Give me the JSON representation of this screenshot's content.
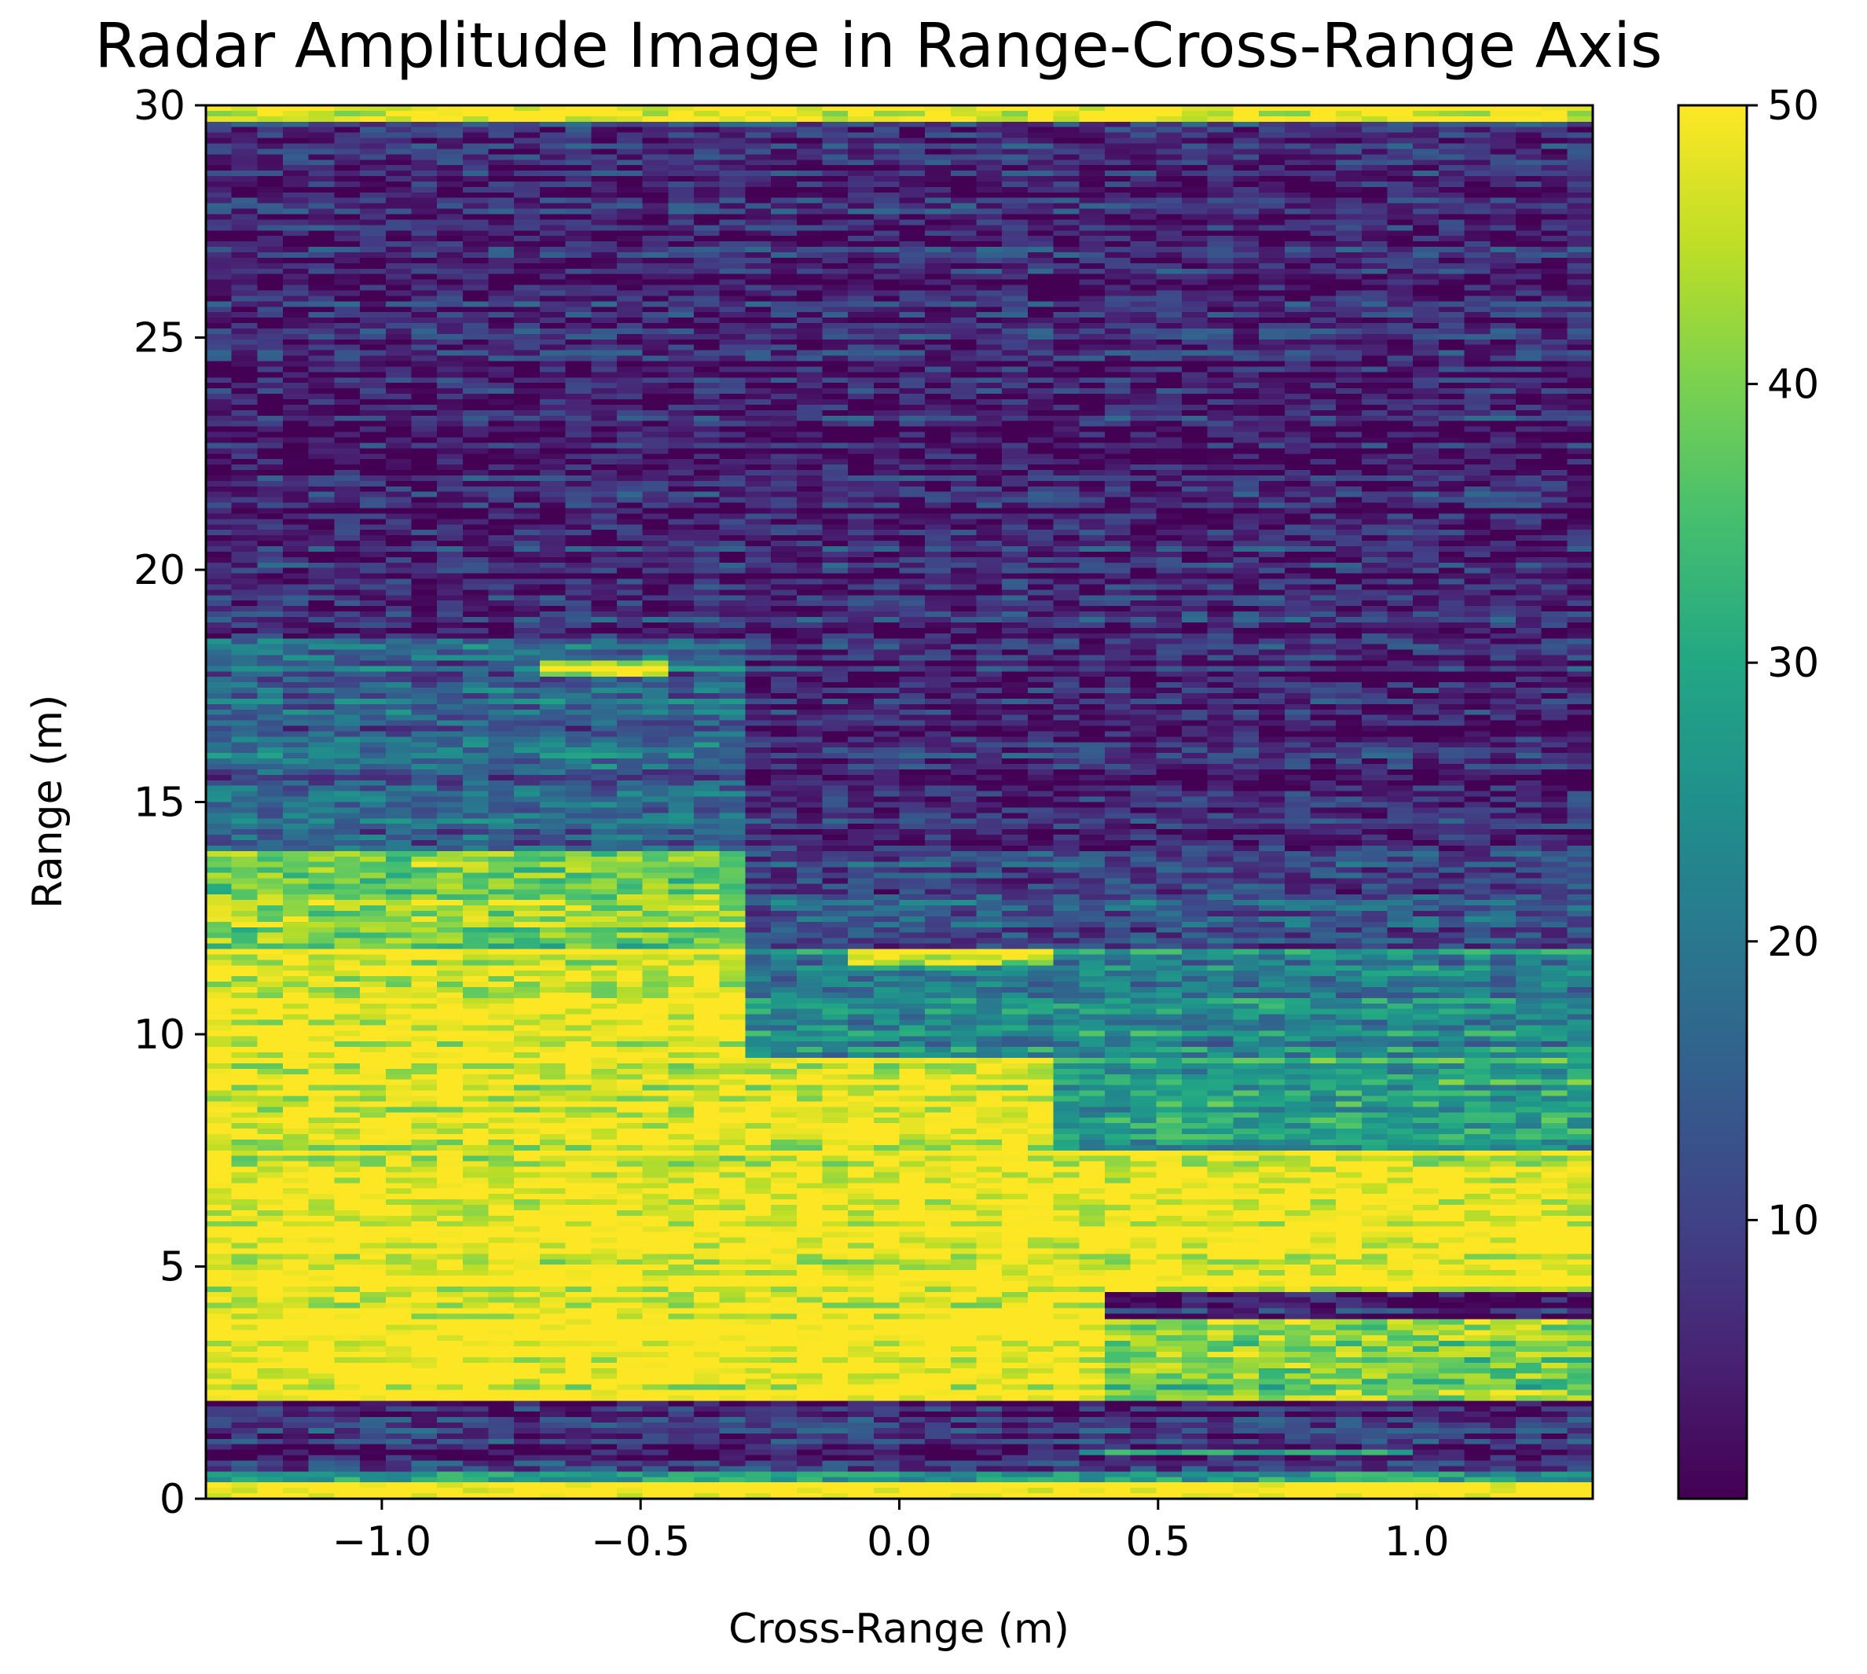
{
  "chart_data": {
    "type": "heatmap",
    "title": "Radar Amplitude Image in Range-Cross-Range Axis",
    "xlabel": "Cross-Range (m)",
    "ylabel": "Range (m)",
    "xlim": [
      -1.34,
      1.34
    ],
    "ylim": [
      0,
      30
    ],
    "xticks": [
      -1.0,
      -0.5,
      0.0,
      0.5,
      1.0
    ],
    "xtick_labels": [
      "−1.0",
      "−0.5",
      "0.0",
      "0.5",
      "1.0"
    ],
    "yticks": [
      0,
      5,
      10,
      15,
      20,
      25,
      30
    ],
    "ytick_labels": [
      "0",
      "5",
      "10",
      "15",
      "20",
      "25",
      "30"
    ],
    "colormap": "viridis",
    "color_range": [
      0,
      50
    ],
    "colorbar_ticks": [
      10,
      20,
      30,
      40,
      50
    ],
    "colorbar_tick_labels": [
      "10",
      "20",
      "30",
      "40",
      "50"
    ],
    "grid": false,
    "cross_range_bins": 54,
    "range_bins": 256,
    "cross_range": [
      -1.34,
      -1.29,
      -1.24,
      -1.19,
      -1.14,
      -1.09,
      -1.04,
      -0.99,
      -0.94,
      -0.89,
      -0.84,
      -0.79,
      -0.74,
      -0.69,
      -0.64,
      -0.59,
      -0.54,
      -0.49,
      -0.44,
      -0.39,
      -0.34,
      -0.29,
      -0.24,
      -0.19,
      -0.14,
      -0.09,
      -0.04,
      0.01,
      0.06,
      0.11,
      0.16,
      0.21,
      0.26,
      0.31,
      0.36,
      0.41,
      0.46,
      0.51,
      0.56,
      0.61,
      0.66,
      0.71,
      0.76,
      0.81,
      0.86,
      0.91,
      0.96,
      1.01,
      1.06,
      1.11,
      1.16,
      1.21,
      1.26,
      1.31
    ],
    "range_bands": [
      {
        "range": [
          0.0,
          0.4
        ],
        "cross_range": [
          -1.34,
          1.34
        ],
        "amplitude": 50
      },
      {
        "range": [
          0.4,
          0.55
        ],
        "cross_range": [
          -1.34,
          1.34
        ],
        "amplitude": 30
      },
      {
        "range": [
          0.55,
          2.1
        ],
        "cross_range": [
          -1.34,
          1.34
        ],
        "amplitude": 6
      },
      {
        "range": [
          0.9,
          1.1
        ],
        "cross_range": [
          0.35,
          1.0
        ],
        "amplitude": 36
      },
      {
        "range": [
          2.1,
          4.4
        ],
        "cross_range": [
          -1.34,
          0.4
        ],
        "amplitude": 50
      },
      {
        "range": [
          2.1,
          3.9
        ],
        "cross_range": [
          0.4,
          1.34
        ],
        "amplitude": 38
      },
      {
        "range": [
          4.4,
          7.5
        ],
        "cross_range": [
          -1.34,
          1.34
        ],
        "amplitude": 50
      },
      {
        "range": [
          7.5,
          9.5
        ],
        "cross_range": [
          -1.34,
          0.3
        ],
        "amplitude": 48
      },
      {
        "range": [
          7.5,
          9.5
        ],
        "cross_range": [
          0.3,
          1.34
        ],
        "amplitude": 28
      },
      {
        "range": [
          9.5,
          11.8
        ],
        "cross_range": [
          -1.34,
          -0.3
        ],
        "amplitude": 50
      },
      {
        "range": [
          9.5,
          11.8
        ],
        "cross_range": [
          -0.3,
          1.34
        ],
        "amplitude": 24
      },
      {
        "range": [
          11.5,
          12.0
        ],
        "cross_range": [
          -0.1,
          0.28
        ],
        "amplitude": 48
      },
      {
        "range": [
          11.8,
          14.0
        ],
        "cross_range": [
          -1.34,
          -0.3
        ],
        "amplitude": 40
      },
      {
        "range": [
          11.8,
          14.0
        ],
        "cross_range": [
          -0.3,
          1.34
        ],
        "amplitude": 12
      },
      {
        "range": [
          14.0,
          18.5
        ],
        "cross_range": [
          -1.34,
          -0.3
        ],
        "amplitude": 16
      },
      {
        "range": [
          14.0,
          18.5
        ],
        "cross_range": [
          -0.3,
          1.34
        ],
        "amplitude": 5
      },
      {
        "range": [
          17.7,
          18.0
        ],
        "cross_range": [
          -0.7,
          -0.45
        ],
        "amplitude": 48
      },
      {
        "range": [
          18.5,
          29.6
        ],
        "cross_range": [
          -1.34,
          1.34
        ],
        "amplitude": 5
      },
      {
        "range": [
          29.6,
          30.0
        ],
        "cross_range": [
          -1.34,
          1.34
        ],
        "amplitude": 50
      }
    ]
  }
}
